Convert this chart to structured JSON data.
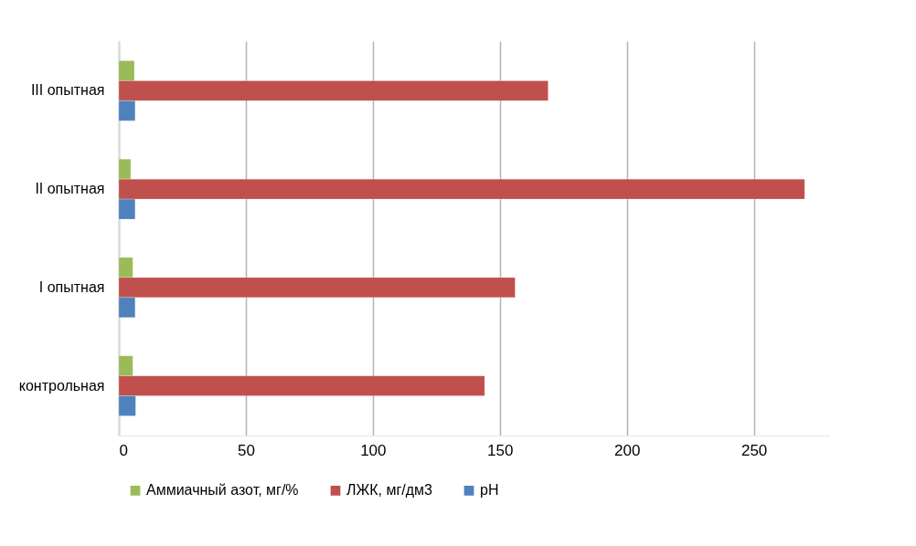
{
  "chart_data": {
    "type": "bar",
    "orientation": "horizontal",
    "categories": [
      "III  опытная",
      "II  опытная",
      "I  опытная",
      "контрольная"
    ],
    "series": [
      {
        "name": "Аммиачный азот, мг/%",
        "color": "#9bbb59",
        "values": [
          6.1,
          4.7,
          5.5,
          5.5
        ]
      },
      {
        "name": "ЛЖК, мг/дм3",
        "color": "#c0504d",
        "values": [
          169,
          270,
          156,
          144
        ]
      },
      {
        "name": "pH",
        "color": "#4f81bd",
        "values": [
          6.4,
          6.4,
          6.4,
          6.6
        ]
      }
    ],
    "xlim": [
      0,
      280
    ],
    "xticks": [
      0,
      50,
      100,
      150,
      200,
      250
    ],
    "grid": "x",
    "legend": "bottom"
  }
}
